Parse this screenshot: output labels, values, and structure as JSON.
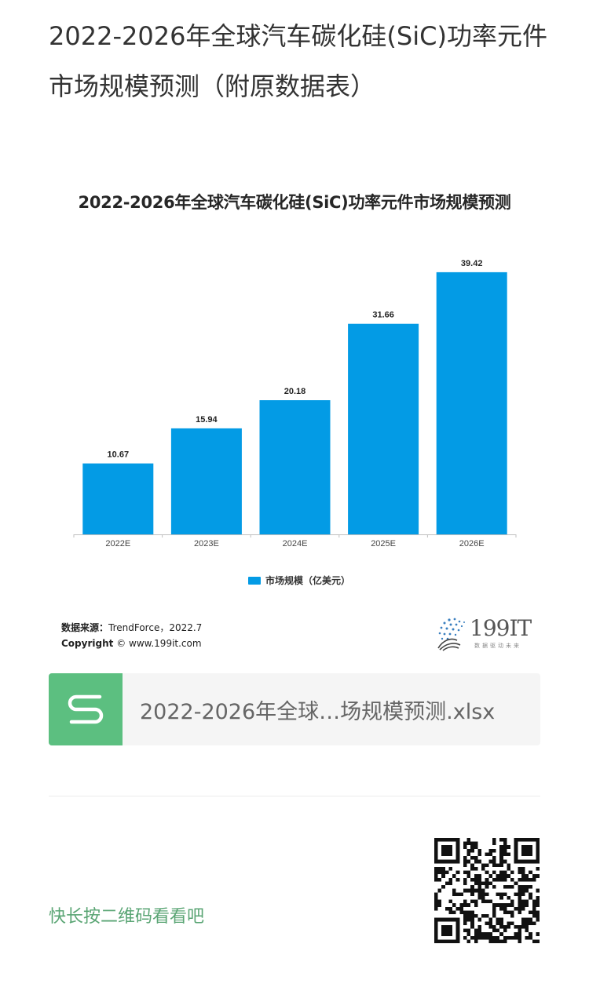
{
  "article": {
    "title": "2022-2026年全球汽车碳化硅(SiC)功率元件市场规模预测（附原数据表）"
  },
  "chart_data": {
    "type": "bar",
    "title": "2022-2026年全球汽车碳化硅(SiC)功率元件市场规模预测",
    "categories": [
      "2022E",
      "2023E",
      "2024E",
      "2025E",
      "2026E"
    ],
    "series": [
      {
        "name": "市场规模（亿美元）",
        "values": [
          10.67,
          15.94,
          20.18,
          31.66,
          39.42
        ],
        "color": "#039be5"
      }
    ],
    "value_labels": [
      "10.67",
      "15.94",
      "20.18",
      "31.66",
      "39.42"
    ],
    "xlabel": "",
    "ylabel": "",
    "ylim": [
      0,
      40
    ],
    "grid": false,
    "legend_position": "bottom-center"
  },
  "source": {
    "label": "数据来源：",
    "text": "TrendForce，2022.7",
    "copyright_label": "Copyright",
    "copyright_text": "© www.199it.com"
  },
  "brand": {
    "name": "199IT",
    "slogan": "数据驱动未来"
  },
  "attachment": {
    "filename": "2022-2026年全球…场规模预测.xlsx",
    "icon": "spreadsheet-s-icon",
    "icon_color": "#5cbf80"
  },
  "qr": {
    "hint": "快长按二维码看看吧",
    "icon": "qr-code-icon"
  }
}
